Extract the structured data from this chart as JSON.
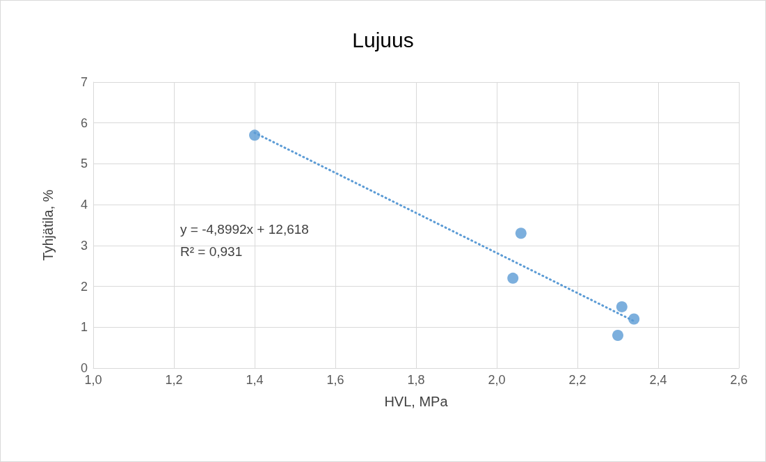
{
  "chart_data": {
    "type": "scatter",
    "title": "Lujuus",
    "xlabel": "HVL, MPa",
    "ylabel": "Tyhjätila, %",
    "xlim": [
      1.0,
      2.6
    ],
    "xticks": [
      {
        "value": 1.0,
        "label": "1,0"
      },
      {
        "value": 1.2,
        "label": "1,2"
      },
      {
        "value": 1.4,
        "label": "1,4"
      },
      {
        "value": 1.6,
        "label": "1,6"
      },
      {
        "value": 1.8,
        "label": "1,8"
      },
      {
        "value": 2.0,
        "label": "2,0"
      },
      {
        "value": 2.2,
        "label": "2,2"
      },
      {
        "value": 2.4,
        "label": "2,4"
      },
      {
        "value": 2.6,
        "label": "2,6"
      }
    ],
    "ylim": [
      0,
      7
    ],
    "yticks": [
      0,
      1,
      2,
      3,
      4,
      5,
      6,
      7
    ],
    "grid": true,
    "marker": "circle",
    "series": [
      {
        "color": "#5b9bd5",
        "x": [
          1.4,
          2.06,
          2.04,
          2.31,
          2.34,
          2.3
        ],
        "values": [
          5.7,
          3.3,
          2.2,
          1.5,
          1.2,
          0.8
        ]
      },
      {
        "type": "line",
        "color": "#5b9bd5",
        "marker": "none",
        "line_style": "dotted",
        "x": [
          1.4,
          2.34
        ],
        "values": [
          5.76,
          1.15
        ]
      }
    ],
    "annotations": [
      "y = -4,8992x + 12,618\nR² = 0,931"
    ]
  }
}
